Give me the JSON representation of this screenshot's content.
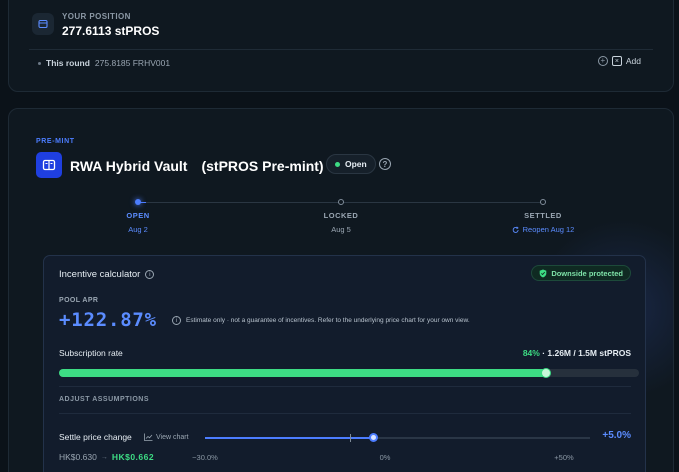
{
  "position": {
    "label": "YOUR POSITION",
    "value": "277.6113 stPROS",
    "round_label": "This round",
    "round_value": "275.8185 FRHV001",
    "add_label": "Add"
  },
  "vault": {
    "tag": "PRE-MINT",
    "title": "RWA Hybrid Vault　(stPROS Pre-mint)",
    "status": "Open",
    "timeline": [
      {
        "label": "OPEN",
        "date": "Aug 2"
      },
      {
        "label": "LOCKED",
        "date": "Aug 5"
      },
      {
        "label": "SETTLED",
        "date": "Reopen Aug 12"
      }
    ]
  },
  "calculator": {
    "title": "Incentive calculator",
    "badge": "Downside protected",
    "apr_label": "POOL APR",
    "apr_value": "+122.87%",
    "apr_note": "Estimate only · not a guarantee of incentives. Refer to the underlying price chart for your own view.",
    "subscription_label": "Subscription rate",
    "subscription_pct": "84%",
    "subscription_detail": " · 1.26M / 1.5M stPROS",
    "subscription_fraction": 0.84,
    "adjust_label": "ADJUST ASSUMPTIONS",
    "settle_label": "Settle price change",
    "view_chart": "View chart",
    "settle_value": "+5.0%",
    "price_from": "HK$0.630",
    "price_to": "HK$0.662",
    "scale": [
      "−30.0%",
      "0%",
      "+50%"
    ]
  },
  "colors": {
    "accent": "#4c7dff",
    "success": "#3ddc84",
    "background": "#0b1219"
  }
}
